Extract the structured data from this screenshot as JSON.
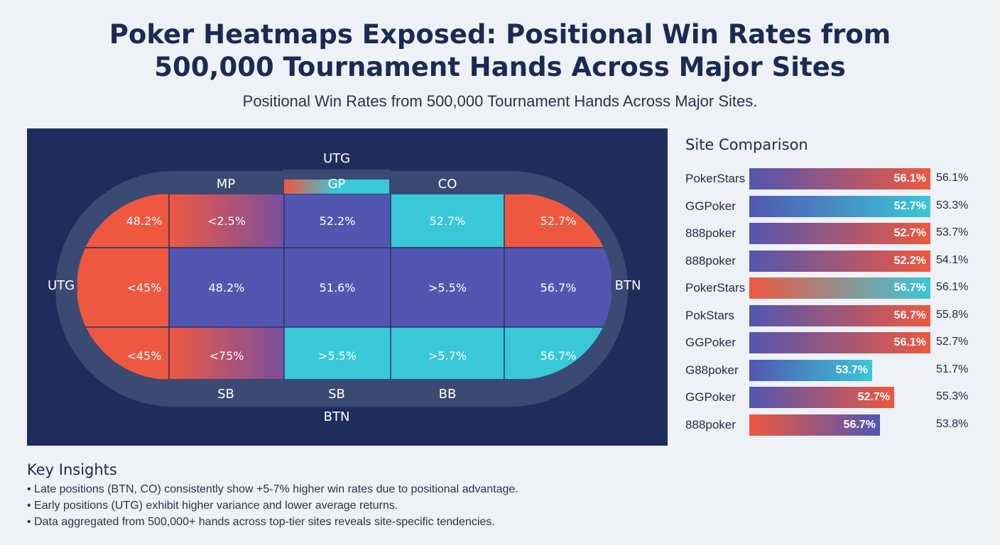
{
  "title_line1": "Poker Heatmaps Exposed: Positional Win Rates from",
  "title_line2": "500,000 Tournament Hands Across Major Sites",
  "subtitle": "Positional Win Rates from 500,000 Tournament Hands Across Major Sites.",
  "colors": {
    "red": "#ee5840",
    "purple": "#5256b0",
    "teal": "#39c8d8",
    "navy": "#1f2d5c",
    "felt": "#3b4a73"
  },
  "chart_data": [
    {
      "type": "heatmap",
      "seat_labels": [
        {
          "id": "utg-top",
          "label": "UTG"
        },
        {
          "id": "mp",
          "label": "MP"
        },
        {
          "id": "gp",
          "label": "GP"
        },
        {
          "id": "co",
          "label": "CO"
        },
        {
          "id": "utg-left",
          "label": "UTG"
        },
        {
          "id": "btn-right",
          "label": "BTN"
        },
        {
          "id": "sb-1",
          "label": "SB"
        },
        {
          "id": "sb-2",
          "label": "SB"
        },
        {
          "id": "bb",
          "label": "BB"
        },
        {
          "id": "btn-bottom",
          "label": "BTN"
        }
      ],
      "rows": [
        [
          {
            "value": "48.2%",
            "color": "red"
          },
          {
            "value": "<2.5%",
            "color": "red-purple"
          },
          {
            "value": "52.2%",
            "color": "purple"
          },
          {
            "value": "52.7%",
            "color": "teal"
          },
          {
            "value": "52.7%",
            "color": "red"
          }
        ],
        [
          {
            "value": "<45%",
            "color": "red"
          },
          {
            "value": "48.2%",
            "color": "purple"
          },
          {
            "value": "51.6%",
            "color": "purple"
          },
          {
            "value": ">5.5%",
            "color": "purple"
          },
          {
            "value": "56.7%",
            "color": "purple"
          }
        ],
        [
          {
            "value": "<45%",
            "color": "red"
          },
          {
            "value": "<75%",
            "color": "red-purple"
          },
          {
            "value": ">5.5%",
            "color": "teal"
          },
          {
            "value": ">5.7%",
            "color": "teal"
          },
          {
            "value": "56.7%",
            "color": "teal"
          }
        ]
      ]
    },
    {
      "type": "bar",
      "title": "Site Comparison",
      "xlim": [
        0,
        60
      ],
      "categories": [
        "PokerStars",
        "GGPoker",
        "888poker",
        "888poker",
        "PokerStars",
        "PokStars",
        "GGPoker",
        "G88poker",
        "GGPoker",
        "888poker"
      ],
      "values": [
        56.1,
        52.7,
        52.7,
        52.2,
        56.7,
        56.7,
        56.1,
        53.7,
        52.7,
        56.7
      ],
      "bar_labels": [
        "56.1%",
        "52.7%",
        "52.7%",
        "52.2%",
        "56.7%",
        "56.7%",
        "56.1%",
        "53.7%",
        "52.7%",
        "56.7%"
      ],
      "side_labels": [
        "56.1%",
        "53.3%",
        "53.7%",
        "54.1%",
        "56.1%",
        "55.8%",
        "52.7%",
        "51.7%",
        "55.3%",
        "53.8%"
      ],
      "bar_fill_fraction": [
        1.0,
        1.0,
        1.0,
        1.0,
        1.0,
        1.0,
        1.0,
        0.68,
        0.8,
        0.72
      ],
      "gradients": [
        [
          "#5256b0",
          "#ee5840"
        ],
        [
          "#5256b0",
          "#39c8d8"
        ],
        [
          "#5256b0",
          "#ee5840"
        ],
        [
          "#5256b0",
          "#ee5840"
        ],
        [
          "#ee5840",
          "#39c8d8"
        ],
        [
          "#5256b0",
          "#ee5840"
        ],
        [
          "#5256b0",
          "#ee5840"
        ],
        [
          "#5256b0",
          "#39c8d8"
        ],
        [
          "#5256b0",
          "#ee5840"
        ],
        [
          "#ee5840",
          "#5256b0"
        ]
      ]
    }
  ],
  "insights": {
    "heading": "Key Insights",
    "items": [
      "Late positions (BTN, CO) consistently show +5-7% higher win rates due to positional advantage.",
      "Early positions (UTG) exhibit higher variance and lower average returns.",
      "Data aggregated from 500,000+ hands across top-tier sites reveals site-specific tendencies."
    ]
  }
}
